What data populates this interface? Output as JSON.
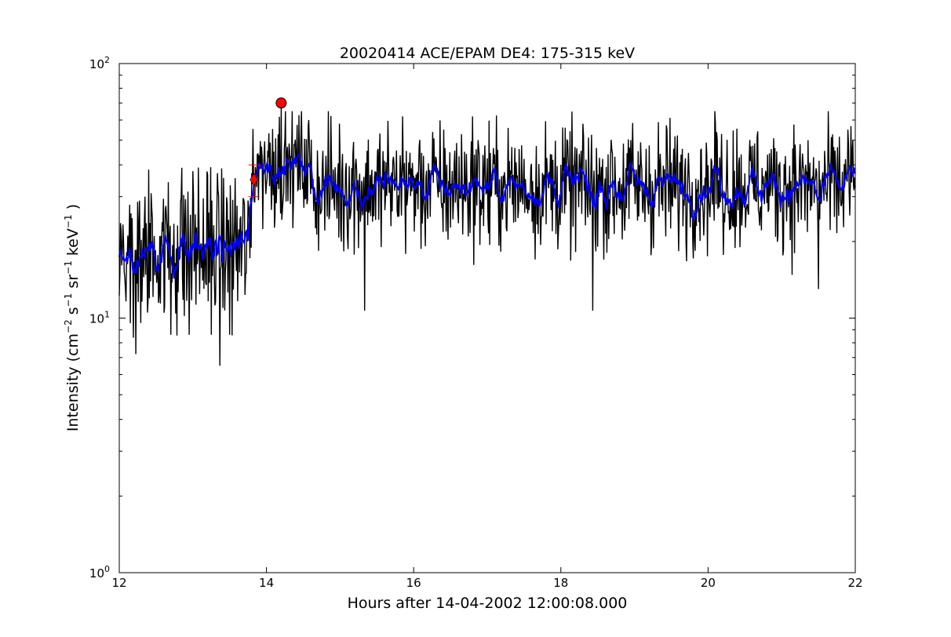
{
  "chart_data": {
    "type": "line",
    "title": "20020414 ACE/EPAM DE4: 175-315 keV",
    "xlabel": "Hours after 14-04-2002 12:00:08.000",
    "ylabel_parts": {
      "intensity": "Intensity (cm",
      "exp1": "−2",
      "s": " s",
      "exp2": "−1",
      "sr": " sr",
      "exp3": "−1",
      "kev": " keV",
      "exp4": "−1",
      "close": " )"
    },
    "xlim": [
      12,
      22
    ],
    "ylim": [
      1,
      100
    ],
    "yscale": "log",
    "x_ticks": [
      {
        "value": 12,
        "label": "12"
      },
      {
        "value": 14,
        "label": "14"
      },
      {
        "value": 16,
        "label": "16"
      },
      {
        "value": 18,
        "label": "18"
      },
      {
        "value": 20,
        "label": "20"
      },
      {
        "value": 22,
        "label": "22"
      }
    ],
    "y_ticks": [
      {
        "value": 1,
        "base": "10",
        "exp": "0"
      },
      {
        "value": 10,
        "base": "10",
        "exp": "1"
      },
      {
        "value": 100,
        "base": "10",
        "exp": "2"
      }
    ],
    "grid": false,
    "series": [
      {
        "role": "raw",
        "color": "#000000",
        "regimes": [
          {
            "x_start": 12.0,
            "x_end": 13.8,
            "base": 19,
            "spread": 0.28
          },
          {
            "x_start": 13.8,
            "x_end": 14.6,
            "base": 40,
            "spread": 0.2
          },
          {
            "x_start": 14.6,
            "x_end": 22.0,
            "base": 33,
            "spread": 0.22
          }
        ],
        "spikes_high": [
          {
            "x": 14.2,
            "y": 70
          },
          {
            "x": 15.85,
            "y": 62
          },
          {
            "x": 16.8,
            "y": 62
          },
          {
            "x": 20.1,
            "y": 58
          },
          {
            "x": 21.9,
            "y": 55
          }
        ],
        "spikes_low": [
          {
            "x": 13.37,
            "y": 6.5
          },
          {
            "x": 12.7,
            "y": 8.6
          },
          {
            "x": 12.95,
            "y": 8.6
          },
          {
            "x": 13.25,
            "y": 8.6
          },
          {
            "x": 13.5,
            "y": 8.6
          },
          {
            "x": 15.33,
            "y": 10.7
          },
          {
            "x": 18.43,
            "y": 10.7
          },
          {
            "x": 21.5,
            "y": 13
          }
        ]
      },
      {
        "role": "smoothed",
        "color": "#0000ff"
      }
    ],
    "markers": [
      {
        "shape": "circle",
        "x": 14.2,
        "y": 70,
        "color": "#ff0000"
      },
      {
        "shape": "diamond",
        "x": 13.83,
        "y": 35,
        "color": "#ff0000",
        "error_low": 30,
        "error_high": 40
      }
    ]
  }
}
